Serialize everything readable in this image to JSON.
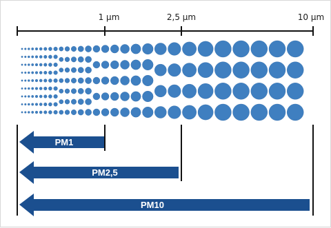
{
  "diagram": {
    "scale": {
      "ticks": [
        {
          "label": "1 µm"
        },
        {
          "label": "2,5 µm"
        },
        {
          "label": "10 µm"
        }
      ]
    },
    "arrows": [
      {
        "label": "PM1"
      },
      {
        "label": "PM2,5"
      },
      {
        "label": "PM10"
      }
    ],
    "colors": {
      "particle": "#3f7fc0",
      "particle_edge": "#2f6aa8",
      "arrow": "#1b4f8f",
      "line": "#111111",
      "label_text": "#ffffff"
    }
  }
}
